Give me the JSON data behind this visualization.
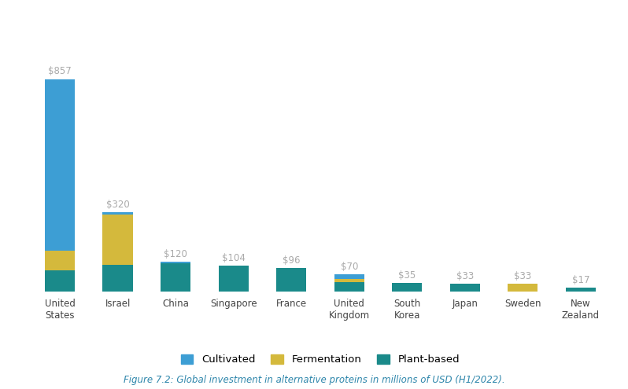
{
  "categories": [
    "United\nStates",
    "Israel",
    "China",
    "Singapore",
    "France",
    "United\nKingdom",
    "South\nKorea",
    "Japan",
    "Sweden",
    "New\nZealand"
  ],
  "cultivated": [
    690,
    10,
    5,
    0,
    0,
    20,
    0,
    0,
    0,
    0
  ],
  "fermentation": [
    80,
    200,
    0,
    0,
    0,
    10,
    0,
    0,
    33,
    0
  ],
  "plant_based": [
    87,
    110,
    115,
    104,
    96,
    40,
    35,
    33,
    0,
    17
  ],
  "totals": [
    857,
    320,
    120,
    104,
    96,
    70,
    35,
    33,
    33,
    17
  ],
  "cultivated_color": "#3d9ed4",
  "fermentation_color": "#d4b93c",
  "plant_based_color": "#1a8a8a",
  "background_color": "#ffffff",
  "label_color": "#aaaaaa",
  "figure_caption": "Figure 7.2: Global investment in alternative proteins in millions of USD (H1/2022).",
  "caption_color": "#2e86ab",
  "legend_labels": [
    "Cultivated",
    "Fermentation",
    "Plant-based"
  ]
}
